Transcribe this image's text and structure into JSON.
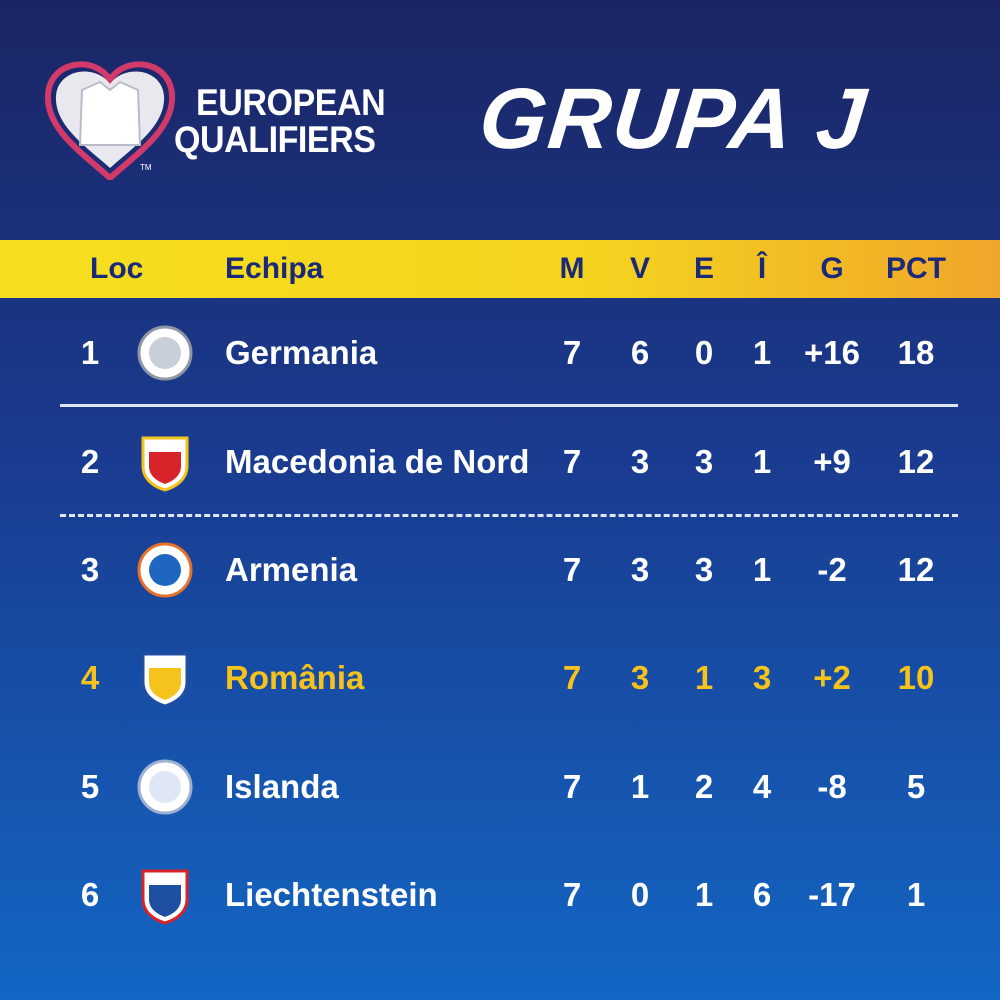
{
  "logo": {
    "line1": "EUROPEAN",
    "line2": "QUALIFIERS",
    "mark": "TM"
  },
  "title": "GRUPA J",
  "table": {
    "headers": [
      "Loc",
      "Echipa",
      "M",
      "V",
      "E",
      "Î",
      "G",
      "PCT"
    ],
    "rows": [
      [
        "1",
        "Germania",
        "7",
        "6",
        "0",
        "1",
        "+16",
        "18"
      ],
      [
        "2",
        "Macedonia de Nord",
        "7",
        "3",
        "3",
        "1",
        "+9",
        "12"
      ],
      [
        "3",
        "Armenia",
        "7",
        "3",
        "3",
        "1",
        "-2",
        "12"
      ],
      [
        "4",
        "România",
        "7",
        "3",
        "1",
        "3",
        "+2",
        "10"
      ],
      [
        "5",
        "Islanda",
        "7",
        "1",
        "2",
        "4",
        "-8",
        "5"
      ],
      [
        "6",
        "Liechtenstein",
        "7",
        "0",
        "1",
        "6",
        "-17",
        "1"
      ]
    ],
    "highlight_row": 3,
    "highlight_color": "#f6c21c"
  }
}
